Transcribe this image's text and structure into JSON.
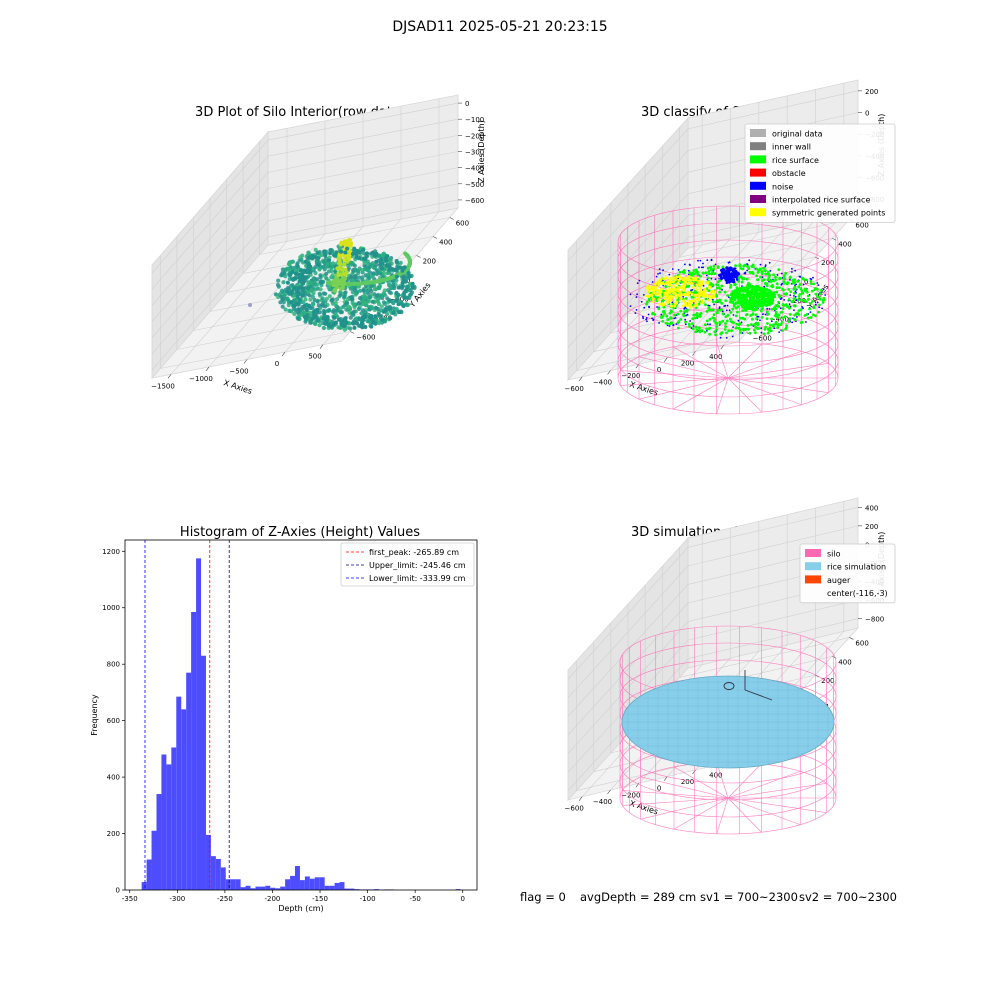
{
  "figure": {
    "suptitle": "DJSAD11 2025-05-21 20:23:15",
    "footer": {
      "flag": "flag = 0",
      "avg_depth": "avgDepth = 289 cm",
      "sv1": "sv1 = 700~2300",
      "sv2": "sv2 = 700~2300"
    }
  },
  "chart_data": [
    {
      "type": "scatter",
      "projection": "3d",
      "title": "3D Plot of Silo Interior(row data)",
      "xlabel": "X Axies",
      "ylabel": "Y Axies",
      "zlabel": "Z Axies (Depth)",
      "x_ticks": [
        "−1500",
        "−1000",
        "−500",
        "0",
        "500"
      ],
      "y_ticks": [
        "−600",
        "−400",
        "−200",
        "0",
        "200",
        "400",
        "600"
      ],
      "z_ticks": [
        "−600",
        "−500",
        "−400",
        "−300",
        "−200",
        "−100",
        "0"
      ],
      "zlim": [
        -650,
        20
      ],
      "colormap": "viridis"
    },
    {
      "type": "scatter",
      "projection": "3d",
      "title": "3D classify of Silo Interior",
      "xlabel": "X Axies",
      "ylabel": "Y Axies",
      "zlabel": "Z Axies (Depth)",
      "x_ticks": [
        "−600",
        "−400",
        "−200",
        "0",
        "200",
        "400"
      ],
      "y_ticks": [
        "−600",
        "−400",
        "−200",
        "0",
        "200",
        "400",
        "600"
      ],
      "z_ticks": [
        "−800",
        "−600",
        "−400",
        "−200",
        "0",
        "200"
      ],
      "legend_position": "top-right",
      "legend": [
        {
          "label": "original data",
          "color": "#b0b0b0"
        },
        {
          "label": "inner wall",
          "color": "#808080"
        },
        {
          "label": "rice surface",
          "color": "#00ff00"
        },
        {
          "label": "obstacle",
          "color": "#ff0000"
        },
        {
          "label": "noise",
          "color": "#0000ff"
        },
        {
          "label": "interpolated rice surface",
          "color": "#800080"
        },
        {
          "label": "symmetric generated points",
          "color": "#ffff00"
        }
      ],
      "wall_color": "#ff69b4"
    },
    {
      "type": "bar",
      "title": "Histogram of Z-Axies (Height) Values",
      "xlabel": "Depth (cm)",
      "ylabel": "Frequency",
      "xlim": [
        -355,
        15
      ],
      "ylim": [
        0,
        1240
      ],
      "x_ticks": [
        -350,
        -300,
        -250,
        -200,
        -150,
        -100,
        -50,
        0
      ],
      "y_ticks": [
        0,
        200,
        400,
        600,
        800,
        1000,
        1200
      ],
      "bin_width": 5.2,
      "bins": [
        {
          "x": -337.5,
          "value": 28
        },
        {
          "x": -332.3,
          "value": 108
        },
        {
          "x": -327.1,
          "value": 210
        },
        {
          "x": -321.9,
          "value": 340
        },
        {
          "x": -316.7,
          "value": 480
        },
        {
          "x": -311.5,
          "value": 445
        },
        {
          "x": -306.3,
          "value": 505
        },
        {
          "x": -301.1,
          "value": 685
        },
        {
          "x": -295.9,
          "value": 640
        },
        {
          "x": -290.7,
          "value": 770
        },
        {
          "x": -285.5,
          "value": 985
        },
        {
          "x": -280.3,
          "value": 1175
        },
        {
          "x": -275.1,
          "value": 830
        },
        {
          "x": -269.9,
          "value": 195
        },
        {
          "x": -264.7,
          "value": 120
        },
        {
          "x": -259.5,
          "value": 110
        },
        {
          "x": -254.3,
          "value": 80
        },
        {
          "x": -249.1,
          "value": 38
        },
        {
          "x": -243.9,
          "value": 38
        },
        {
          "x": -238.7,
          "value": 38
        },
        {
          "x": -233.5,
          "value": 10
        },
        {
          "x": -228.3,
          "value": 15
        },
        {
          "x": -223.1,
          "value": 6
        },
        {
          "x": -217.9,
          "value": 12
        },
        {
          "x": -212.7,
          "value": 12
        },
        {
          "x": -207.5,
          "value": 15
        },
        {
          "x": -202.3,
          "value": 8
        },
        {
          "x": -197.1,
          "value": 6
        },
        {
          "x": -191.9,
          "value": 12
        },
        {
          "x": -186.7,
          "value": 38
        },
        {
          "x": -181.5,
          "value": 50
        },
        {
          "x": -176.3,
          "value": 85
        },
        {
          "x": -171.1,
          "value": 35
        },
        {
          "x": -165.9,
          "value": 48
        },
        {
          "x": -160.7,
          "value": 40
        },
        {
          "x": -155.5,
          "value": 45
        },
        {
          "x": -150.3,
          "value": 45
        },
        {
          "x": -145.1,
          "value": 15
        },
        {
          "x": -139.9,
          "value": 15
        },
        {
          "x": -134.7,
          "value": 25
        },
        {
          "x": -129.5,
          "value": 28
        },
        {
          "x": -124.3,
          "value": 5
        },
        {
          "x": -119.1,
          "value": 5
        },
        {
          "x": -113.9,
          "value": 3
        },
        {
          "x": -108.7,
          "value": 2
        },
        {
          "x": -103.5,
          "value": 2
        },
        {
          "x": -98.3,
          "value": 2
        },
        {
          "x": -93.1,
          "value": 3
        },
        {
          "x": -87.9,
          "value": 1
        },
        {
          "x": -82.7,
          "value": 2
        },
        {
          "x": -77.5,
          "value": 2
        },
        {
          "x": -7.5,
          "value": 3
        }
      ],
      "bar_color": "#4d4dff",
      "vlines": [
        {
          "label": "first_peak: -265.89 cm",
          "x": -265.89,
          "color": "#ff0000"
        },
        {
          "label": "Upper_limit: -245.46 cm",
          "x": -245.46,
          "color": "#00008b"
        },
        {
          "label": "Lower_limit: -333.99 cm",
          "x": -333.99,
          "color": "#0000ff"
        }
      ],
      "legend_position": "top-right"
    },
    {
      "type": "scatter",
      "projection": "3d",
      "title": "3D simulation of Silo Interior",
      "xlabel": "X Axies",
      "ylabel": "Y Axies",
      "zlabel": "Z Axies (Depth)",
      "x_ticks": [
        "−600",
        "−400",
        "−200",
        "0",
        "200",
        "400"
      ],
      "y_ticks": [
        "−600",
        "−400",
        "−200",
        "0",
        "200",
        "400",
        "600"
      ],
      "z_ticks": [
        "−800",
        "−600",
        "−400",
        "−200",
        "0",
        "200",
        "400"
      ],
      "legend_position": "top-right",
      "legend": [
        {
          "label": "silo",
          "color": "#ff69b4"
        },
        {
          "label": "rice simulation",
          "color": "#87ceeb"
        },
        {
          "label": "auger",
          "color": "#ff4500"
        },
        {
          "label": "center(-116,-3)",
          "color": "none"
        }
      ]
    }
  ]
}
